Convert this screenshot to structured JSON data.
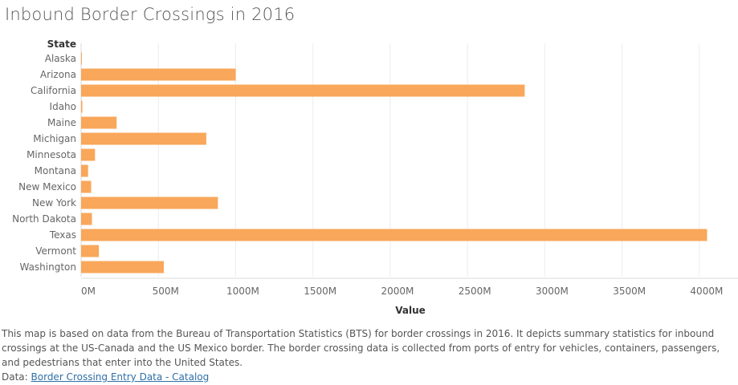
{
  "title": "Inbound Border Crossings in 2016",
  "chart_data": {
    "type": "bar",
    "orientation": "horizontal",
    "title": "Inbound Border Crossings in 2016",
    "ylabel": "State",
    "xlabel": "Value",
    "categories": [
      "Alaska",
      "Arizona",
      "California",
      "Idaho",
      "Maine",
      "Michigan",
      "Minnesota",
      "Montana",
      "New Mexico",
      "New York",
      "North Dakota",
      "Texas",
      "Vermont",
      "Washington"
    ],
    "values": [
      5,
      1000,
      2870,
      8,
      230,
      810,
      90,
      45,
      65,
      885,
      70,
      4050,
      115,
      535
    ],
    "xlim": [
      0,
      4250
    ],
    "xticks": [
      0,
      500,
      1000,
      1500,
      2000,
      2500,
      3000,
      3500,
      4000
    ],
    "xtick_labels": [
      "0M",
      "500M",
      "1000M",
      "1500M",
      "2000M",
      "2500M",
      "3000M",
      "3500M",
      "4000M"
    ],
    "value_unit": "M",
    "bar_color": "#f9a75a",
    "grid": true,
    "legend": "none"
  },
  "description": "This map is based on data from the Bureau of Transportation Statistics (BTS) for border crossings in 2016. It depicts summary statistics for inbound crossings at the US-Canada and the US Mexico border. The border crossing data is collected from ports of entry for vehicles, containers, passengers, and pedestrians that enter into the United States.",
  "data_prefix": "Data: ",
  "data_link_text": "Border Crossing Entry Data - Catalog"
}
